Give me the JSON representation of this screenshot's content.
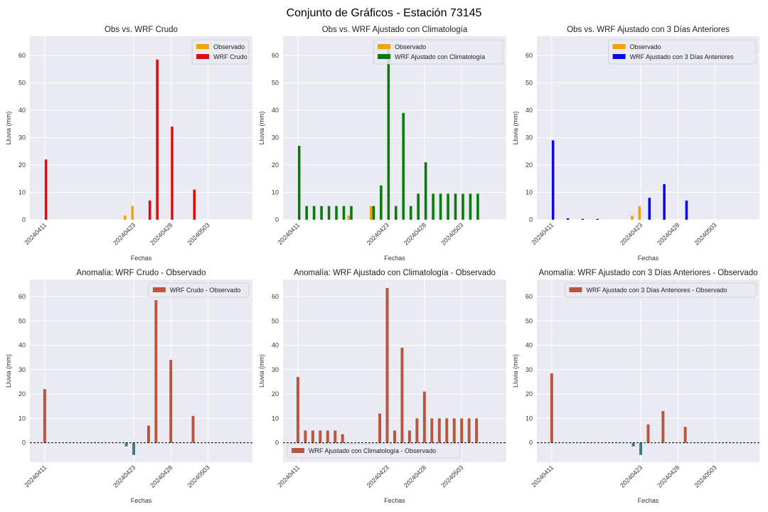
{
  "figure_title": "Conjunto de Gráficos - Estación 73145",
  "colors": {
    "observed": "#f5a10a",
    "raw": "#e00c0c",
    "clim": "#0a7a0a",
    "prev3": "#0a0ae0",
    "anomaly_pos": "#b85640",
    "anomaly_neg": "#3f7a82",
    "panel_bg": "#eaeaf2",
    "grid": "#ffffff"
  },
  "chart_data": [
    {
      "type": "bar",
      "title": "Obs vs. WRF Crudo",
      "xlabel": "Fechas",
      "ylabel": "Lluvia (mm)",
      "ylim": [
        0,
        67
      ],
      "yticks": [
        0,
        10,
        20,
        30,
        40,
        50,
        60
      ],
      "xlim": [
        20240409,
        20240509
      ],
      "xticks": [
        20240411,
        20240423,
        20240428,
        20240503
      ],
      "grid": true,
      "legend_position": "top-right",
      "series": [
        {
          "name": "Observado",
          "color_key": "observed",
          "x": [
            20240411,
            20240422,
            20240423,
            20240425,
            20240426,
            20240428,
            20240501
          ],
          "values": [
            0,
            1.5,
            5,
            0,
            0,
            0,
            0
          ]
        },
        {
          "name": "WRF Crudo",
          "color_key": "raw",
          "x": [
            20240411,
            20240422,
            20240423,
            20240425,
            20240426,
            20240428,
            20240501
          ],
          "values": [
            22,
            0,
            0,
            7,
            58.5,
            34,
            11
          ]
        }
      ]
    },
    {
      "type": "bar",
      "title": "Obs vs. WRF Ajustado con Climatología",
      "xlabel": "Fechas",
      "ylabel": "Lluvia (mm)",
      "ylim": [
        0,
        67
      ],
      "yticks": [
        0,
        10,
        20,
        30,
        40,
        50,
        60
      ],
      "xlim": [
        20240409,
        20240509
      ],
      "xticks": [
        20240411,
        20240423,
        20240428,
        20240503
      ],
      "grid": true,
      "legend_position": "top-right",
      "series": [
        {
          "name": "Observado",
          "color_key": "observed",
          "x": [
            20240411,
            20240412,
            20240413,
            20240414,
            20240415,
            20240416,
            20240417,
            20240418,
            20240421,
            20240422,
            20240423,
            20240424,
            20240425,
            20240426,
            20240427,
            20240428,
            20240429,
            20240430,
            20240501,
            20240502,
            20240503,
            20240504,
            20240505
          ],
          "values": [
            0,
            0,
            0,
            0,
            0,
            0,
            0,
            1.5,
            5,
            0,
            0,
            0,
            0,
            0,
            0,
            0,
            0,
            0,
            0,
            0,
            0,
            0,
            0
          ]
        },
        {
          "name": "WRF Ajustado con Climatología",
          "color_key": "clim",
          "x": [
            20240411,
            20240412,
            20240413,
            20240414,
            20240415,
            20240416,
            20240417,
            20240418,
            20240421,
            20240422,
            20240423,
            20240424,
            20240425,
            20240426,
            20240427,
            20240428,
            20240429,
            20240430,
            20240501,
            20240502,
            20240503,
            20240504,
            20240505
          ],
          "values": [
            27,
            5,
            5,
            5,
            5,
            5,
            5,
            5,
            5,
            12.5,
            63,
            5,
            39,
            5,
            9.5,
            21,
            9.5,
            9.5,
            9.5,
            9.5,
            9.5,
            9.5,
            9.5
          ]
        }
      ]
    },
    {
      "type": "bar",
      "title": "Obs vs. WRF Ajustado con 3 Días Anteriores",
      "xlabel": "Fechas",
      "ylabel": "Lluvia (mm)",
      "ylim": [
        0,
        67
      ],
      "yticks": [
        0,
        10,
        20,
        30,
        40,
        50,
        60
      ],
      "xlim": [
        20240409,
        20240509
      ],
      "xticks": [
        20240411,
        20240423,
        20240428,
        20240503
      ],
      "grid": true,
      "legend_position": "top-right",
      "series": [
        {
          "name": "Observado",
          "color_key": "observed",
          "x": [
            20240411,
            20240413,
            20240415,
            20240417,
            20240418,
            20240422,
            20240423,
            20240424,
            20240426,
            20240429
          ],
          "values": [
            0,
            0,
            0,
            0,
            0,
            1.5,
            5,
            0,
            0,
            0
          ]
        },
        {
          "name": "WRF Ajustado con 3 Días Anteriores",
          "color_key": "prev3",
          "x": [
            20240411,
            20240413,
            20240415,
            20240417,
            20240418,
            20240422,
            20240423,
            20240424,
            20240426,
            20240429
          ],
          "values": [
            29,
            0.5,
            0.3,
            0.3,
            0,
            0,
            0,
            8,
            13,
            7
          ]
        }
      ]
    },
    {
      "type": "bar",
      "title": "Anomalía: WRF Crudo - Observado",
      "xlabel": "Fechas",
      "ylabel": "Lluvia (mm)",
      "ylim": [
        -8,
        67
      ],
      "yticks": [
        0,
        10,
        20,
        30,
        40,
        50,
        60
      ],
      "xlim": [
        20240409,
        20240509
      ],
      "xticks": [
        20240411,
        20240423,
        20240428,
        20240503
      ],
      "grid": true,
      "zero_line": true,
      "legend_position": "top-right",
      "series": [
        {
          "name": "WRF Crudo - Observado",
          "color_key": "anomaly_pos",
          "negative_color_key": "anomaly_neg",
          "x": [
            20240411,
            20240422,
            20240423,
            20240425,
            20240426,
            20240428,
            20240501
          ],
          "values": [
            22,
            -1.5,
            -5,
            7,
            58.5,
            34,
            11
          ]
        }
      ]
    },
    {
      "type": "bar",
      "title": "Anomalía: WRF Ajustado con Climatología - Observado",
      "xlabel": "Fechas",
      "ylabel": "Lluvia (mm)",
      "ylim": [
        -8,
        67
      ],
      "yticks": [
        0,
        10,
        20,
        30,
        40,
        50,
        60
      ],
      "xlim": [
        20240409,
        20240509
      ],
      "xticks": [
        20240411,
        20240423,
        20240428,
        20240503
      ],
      "grid": true,
      "zero_line": true,
      "legend_position": "bottom-left",
      "series": [
        {
          "name": "WRF Ajustado con Climatología - Observado",
          "color_key": "anomaly_pos",
          "negative_color_key": "anomaly_neg",
          "x": [
            20240411,
            20240412,
            20240413,
            20240414,
            20240415,
            20240416,
            20240417,
            20240418,
            20240421,
            20240422,
            20240423,
            20240424,
            20240425,
            20240426,
            20240427,
            20240428,
            20240429,
            20240430,
            20240501,
            20240502,
            20240503,
            20240504,
            20240505
          ],
          "values": [
            27,
            5,
            5,
            5,
            5,
            5,
            3.5,
            0,
            0,
            12,
            63.5,
            5,
            39,
            5,
            10,
            21,
            10,
            10,
            10,
            10,
            10,
            10,
            10
          ]
        }
      ]
    },
    {
      "type": "bar",
      "title": "Anomalía: WRF Ajustado con 3 Días Anteriores - Observado",
      "xlabel": "Fechas",
      "ylabel": "Lluvia (mm)",
      "ylim": [
        -8,
        67
      ],
      "yticks": [
        0,
        10,
        20,
        30,
        40,
        50,
        60
      ],
      "xlim": [
        20240409,
        20240509
      ],
      "xticks": [
        20240411,
        20240423,
        20240428,
        20240503
      ],
      "grid": true,
      "zero_line": true,
      "legend_position": "top-right",
      "series": [
        {
          "name": "WRF Ajustado con 3 Días Anteriores - Observado",
          "color_key": "anomaly_pos",
          "negative_color_key": "anomaly_neg",
          "x": [
            20240411,
            20240422,
            20240423,
            20240424,
            20240426,
            20240429
          ],
          "values": [
            28.5,
            -1.5,
            -5,
            7.5,
            13,
            6.5
          ]
        }
      ]
    }
  ]
}
